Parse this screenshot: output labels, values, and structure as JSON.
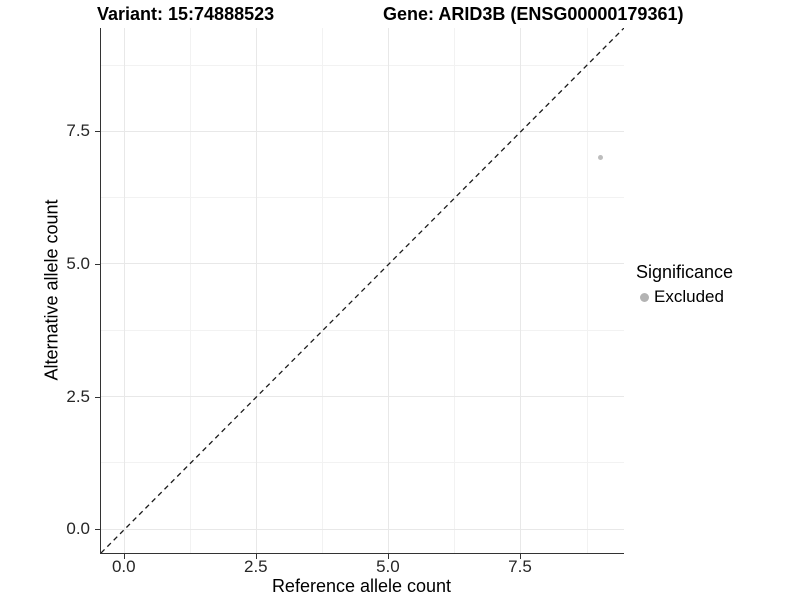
{
  "titles": {
    "variant": "Variant: 15:74888523",
    "gene": "Gene: ARID3B (ENSG00000179361)"
  },
  "chart_data": {
    "type": "scatter",
    "title_left": "Variant: 15:74888523",
    "title_right": "Gene: ARID3B (ENSG00000179361)",
    "xlabel": "Reference allele count",
    "ylabel": "Alternative allele count",
    "xlim": [
      -0.45,
      9.45
    ],
    "ylim": [
      -0.45,
      9.45
    ],
    "x_major_ticks": [
      0.0,
      2.5,
      5.0,
      7.5
    ],
    "x_tick_labels": [
      "0.0",
      "2.5",
      "5.0",
      "7.5"
    ],
    "x_minor_ticks": [
      1.25,
      3.75,
      6.25,
      8.75
    ],
    "y_major_ticks": [
      0.0,
      2.5,
      5.0,
      7.5
    ],
    "y_tick_labels": [
      "0.0",
      "2.5",
      "5.0",
      "7.5"
    ],
    "y_minor_ticks": [
      1.25,
      3.75,
      6.25,
      8.75
    ],
    "grid": true,
    "series": [
      {
        "name": "Excluded",
        "color": "#bdbdbd",
        "points": [
          {
            "x": 9,
            "y": 7
          }
        ]
      }
    ],
    "abline": {
      "slope": 1,
      "intercept": 0,
      "style": "dashed",
      "color": "#1a1a1a"
    },
    "legend": {
      "position": "right",
      "title": "Significance",
      "entries": [
        {
          "label": "Excluded",
          "color": "#b3b3b3"
        }
      ]
    }
  },
  "colors": {
    "grid_major": "#e8e8e8",
    "grid_minor": "#f2f2f2",
    "axis_line": "#333333",
    "tick_text": "#262626",
    "title_text": "#000000"
  }
}
